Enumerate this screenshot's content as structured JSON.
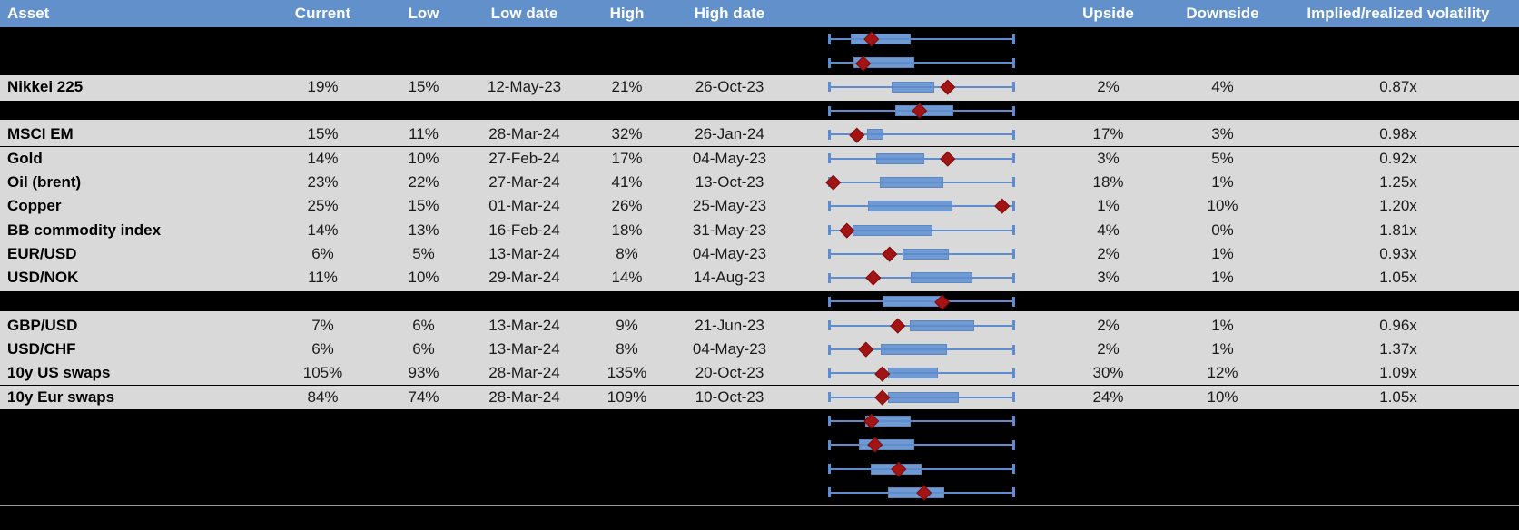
{
  "colors": {
    "header_bg": "#6190ca",
    "header_text": "#ffffff",
    "row_bg": "#d9d9d9",
    "redacted_bg": "#000000",
    "whisker_blue": "#5e8ccd",
    "box_blue": "#6f9ad4",
    "box_border_blue": "#5e86bb",
    "marker_red": "#a31414",
    "divider_gray": "#999999",
    "value_text": "#1a1a1a"
  },
  "header": {
    "columns": [
      {
        "key": "asset",
        "label": "Asset",
        "align": "left"
      },
      {
        "key": "current",
        "label": "Current",
        "align": "center"
      },
      {
        "key": "low",
        "label": "Low",
        "align": "center"
      },
      {
        "key": "low_date",
        "label": "Low date",
        "align": "center"
      },
      {
        "key": "high",
        "label": "High",
        "align": "center"
      },
      {
        "key": "high_date",
        "label": "High date",
        "align": "center"
      },
      {
        "key": "upside",
        "label": "Upside",
        "align": "center"
      },
      {
        "key": "downside",
        "label": "Downside",
        "align": "center"
      },
      {
        "key": "implied_realized",
        "label": "Implied/realized volatility",
        "align": "center"
      }
    ]
  },
  "chart_data": {
    "type": "table",
    "description": "Implied volatility table per asset: current, 1y low/high with dates, upside/downside, implied-to-realized ratio. Each row embeds a horizontal box-and-whisker plot (whisker = full low-to-high range normalized 0-1, blue box = interquartile band, red diamond = current level). Rows marked redacted are blacked out in the source image but still show their box plot.",
    "marker_legend": "red diamond = current implied volatility within the low-high range",
    "rows": [
      {
        "type": "redacted",
        "plot": {
          "box": [
            0.12,
            0.44
          ],
          "marker": 0.233
        }
      },
      {
        "type": "redacted",
        "plot": {
          "box": [
            0.137,
            0.46
          ],
          "marker": 0.189
        }
      },
      {
        "type": "data",
        "asset": "Nikkei 225",
        "current": "19%",
        "low": "15%",
        "low_date": "12-May-23",
        "high": "21%",
        "high_date": "26-Oct-23",
        "upside": "2%",
        "downside": "4%",
        "implied_realized": "0.87x",
        "plot": {
          "box": [
            0.34,
            0.566
          ],
          "marker": 0.64
        }
      },
      {
        "type": "redacted",
        "inset": true,
        "plot": {
          "box": [
            0.36,
            0.668
          ],
          "marker": 0.489
        }
      },
      {
        "type": "data",
        "asset": "MSCI EM",
        "current": "15%",
        "low": "11%",
        "low_date": "28-Mar-24",
        "high": "32%",
        "high_date": "26-Jan-24",
        "upside": "17%",
        "downside": "3%",
        "implied_realized": "0.98x",
        "plot": {
          "box": [
            0.208,
            0.294
          ],
          "marker": 0.153
        }
      },
      {
        "type": "data",
        "asset": "Gold",
        "current": "14%",
        "low": "10%",
        "low_date": "27-Feb-24",
        "high": "17%",
        "high_date": "04-May-23",
        "upside": "3%",
        "downside": "5%",
        "implied_realized": "0.92x",
        "plot": {
          "box": [
            0.255,
            0.517
          ],
          "marker": 0.64
        }
      },
      {
        "type": "data",
        "asset": "Oil (brent)",
        "current": "23%",
        "low": "22%",
        "low_date": "27-Mar-24",
        "high": "41%",
        "high_date": "13-Oct-23",
        "upside": "18%",
        "downside": "1%",
        "implied_realized": "1.25x",
        "plot": {
          "box": [
            0.275,
            0.616
          ],
          "marker": 0.029
        }
      },
      {
        "type": "data",
        "asset": "Copper",
        "current": "25%",
        "low": "15%",
        "low_date": "01-Mar-24",
        "high": "26%",
        "high_date": "25-May-23",
        "upside": "1%",
        "downside": "10%",
        "implied_realized": "1.20x",
        "plot": {
          "box": [
            0.216,
            0.663
          ],
          "marker": 0.933
        }
      },
      {
        "type": "data",
        "asset": "BB commodity index",
        "current": "14%",
        "low": "13%",
        "low_date": "16-Feb-24",
        "high": "18%",
        "high_date": "31-May-23",
        "upside": "4%",
        "downside": "0%",
        "implied_realized": "1.81x",
        "plot": {
          "box": [
            0.132,
            0.56
          ],
          "marker": 0.099
        }
      },
      {
        "type": "data",
        "asset": "EUR/USD",
        "current": "6%",
        "low": "5%",
        "low_date": "13-Mar-24",
        "high": "8%",
        "high_date": "04-May-23",
        "upside": "2%",
        "downside": "1%",
        "implied_realized": "0.93x",
        "plot": {
          "box": [
            0.4,
            0.647
          ],
          "marker": 0.33
        }
      },
      {
        "type": "data",
        "asset": "USD/NOK",
        "current": "11%",
        "low": "10%",
        "low_date": "29-Mar-24",
        "high": "14%",
        "high_date": "14-Aug-23",
        "upside": "3%",
        "downside": "1%",
        "implied_realized": "1.05x",
        "plot": {
          "box": [
            0.44,
            0.771
          ],
          "marker": 0.24
        }
      },
      {
        "type": "redacted",
        "inset": true,
        "plot": {
          "box": [
            0.29,
            0.61
          ],
          "marker": 0.612
        }
      },
      {
        "type": "data",
        "asset": "GBP/USD",
        "current": "7%",
        "low": "6%",
        "low_date": "13-Mar-24",
        "high": "9%",
        "high_date": "21-Jun-23",
        "upside": "2%",
        "downside": "1%",
        "implied_realized": "0.96x",
        "plot": {
          "box": [
            0.436,
            0.782
          ],
          "marker": 0.372
        }
      },
      {
        "type": "data",
        "asset": "USD/CHF",
        "current": "6%",
        "low": "6%",
        "low_date": "13-Mar-24",
        "high": "8%",
        "high_date": "04-May-23",
        "upside": "2%",
        "downside": "1%",
        "implied_realized": "1.37x",
        "plot": {
          "box": [
            0.281,
            0.636
          ],
          "marker": 0.205
        }
      },
      {
        "type": "data",
        "asset": "10y US swaps",
        "current": "105%",
        "low": "93%",
        "low_date": "28-Mar-24",
        "high": "135%",
        "high_date": "20-Oct-23",
        "upside": "30%",
        "downside": "12%",
        "implied_realized": "1.09x",
        "plot": {
          "box": [
            0.322,
            0.587
          ],
          "marker": 0.291
        }
      },
      {
        "type": "data",
        "asset": "10y Eur swaps",
        "current": "84%",
        "low": "74%",
        "low_date": "28-Mar-24",
        "high": "109%",
        "high_date": "10-Oct-23",
        "upside": "24%",
        "downside": "10%",
        "implied_realized": "1.05x",
        "plot": {
          "box": [
            0.322,
            0.701
          ],
          "marker": 0.291
        }
      },
      {
        "type": "redacted",
        "plot": {
          "box": [
            0.201,
            0.444
          ],
          "marker": 0.234
        }
      },
      {
        "type": "redacted",
        "plot": {
          "box": [
            0.164,
            0.46
          ],
          "marker": 0.25
        }
      },
      {
        "type": "redacted",
        "plot": {
          "box": [
            0.226,
            0.501
          ],
          "marker": 0.376
        }
      },
      {
        "type": "redacted",
        "plot": {
          "box": [
            0.322,
            0.62
          ],
          "marker": 0.514
        }
      }
    ]
  }
}
